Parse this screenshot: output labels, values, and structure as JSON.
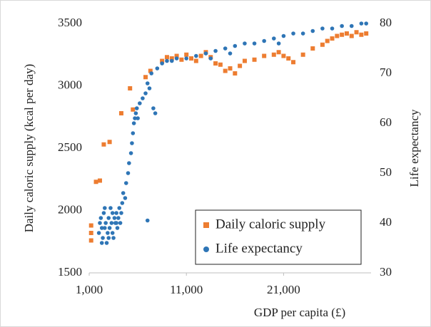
{
  "chart_data": {
    "type": "scatter",
    "x_label": "GDP per capita (£)",
    "y_label": "Daily caloric supply (kcal per day)",
    "y2_label": "Life expectancy",
    "xlim": [
      1000,
      30000
    ],
    "xticks": [
      {
        "value": 1000,
        "label": "1,000"
      },
      {
        "value": 11000,
        "label": "11,000"
      },
      {
        "value": 21000,
        "label": "21,000"
      }
    ],
    "ylim": [
      1500,
      3500
    ],
    "yticks": [
      1500,
      2000,
      2500,
      3000,
      3500
    ],
    "y2lim": [
      30,
      80
    ],
    "y2ticks": [
      30,
      40,
      50,
      60,
      70,
      80
    ],
    "legend": "lower right",
    "series": [
      {
        "name": "Daily caloric supply",
        "color": "#ed7d31",
        "marker": "square",
        "x": [
          1200,
          1200,
          1200,
          1700,
          2100,
          2500,
          3100,
          4300,
          5200,
          5500,
          6800,
          7300,
          8500,
          9000,
          9500,
          10000,
          10500,
          11000,
          11500,
          12000,
          12500,
          13000,
          13500,
          14000,
          14500,
          15000,
          15500,
          16000,
          16500,
          17000,
          18000,
          19000,
          20000,
          20500,
          21000,
          21500,
          22000,
          23000,
          24000,
          25000,
          25500,
          26000,
          26500,
          27000,
          27500,
          28000,
          28500,
          29000,
          29500
        ],
        "values": [
          1880,
          1820,
          1760,
          2230,
          2240,
          2530,
          2550,
          2780,
          2980,
          2810,
          3070,
          3120,
          3200,
          3230,
          3220,
          3240,
          3210,
          3250,
          3220,
          3200,
          3240,
          3270,
          3230,
          3180,
          3170,
          3120,
          3140,
          3100,
          3160,
          3200,
          3210,
          3240,
          3250,
          3270,
          3240,
          3220,
          3190,
          3250,
          3300,
          3330,
          3360,
          3380,
          3400,
          3410,
          3420,
          3400,
          3430,
          3410,
          3420
        ]
      },
      {
        "name": "Life expectancy",
        "color": "#2e75b6",
        "marker": "circle",
        "axis": "y2",
        "x": [
          2000,
          2100,
          2200,
          2300,
          2400,
          2500,
          2600,
          2700,
          2800,
          2900,
          3000,
          3100,
          3200,
          3300,
          3400,
          3500,
          3600,
          3700,
          3800,
          3900,
          4000,
          4100,
          4200,
          4300,
          4400,
          2300,
          2600,
          3000,
          3400,
          3800,
          4500,
          4700,
          4800,
          5000,
          5100,
          5300,
          5400,
          5500,
          5600,
          5700,
          5800,
          5900,
          6000,
          6200,
          6500,
          6800,
          7000,
          7200,
          7400,
          7600,
          7800,
          7000,
          8000,
          8500,
          9000,
          9500,
          10000,
          11000,
          12000,
          13000,
          13500,
          14000,
          15000,
          15500,
          16000,
          17000,
          18000,
          19000,
          20000,
          20500,
          21000,
          22000,
          23000,
          24000,
          25000,
          26000,
          27000,
          28000,
          29000,
          29500
        ],
        "values": [
          38,
          40,
          41,
          39,
          37,
          42,
          39,
          40,
          36,
          38,
          41,
          39,
          43,
          40,
          38,
          37,
          41,
          40,
          42,
          39,
          41,
          43,
          40,
          42,
          44,
          36,
          43,
          37,
          42,
          40,
          46,
          45,
          48,
          50,
          52,
          54,
          56,
          58,
          60,
          61,
          62,
          63,
          61,
          64,
          65,
          66,
          68,
          67,
          70,
          63,
          62,
          40.5,
          71,
          72,
          72.5,
          72.5,
          73,
          73,
          73.5,
          74,
          73,
          74.5,
          75,
          74,
          75.5,
          76,
          76,
          76.5,
          77,
          76,
          77.5,
          78,
          78,
          78.5,
          79,
          79,
          79.5,
          79.5,
          80,
          80
        ]
      }
    ]
  }
}
